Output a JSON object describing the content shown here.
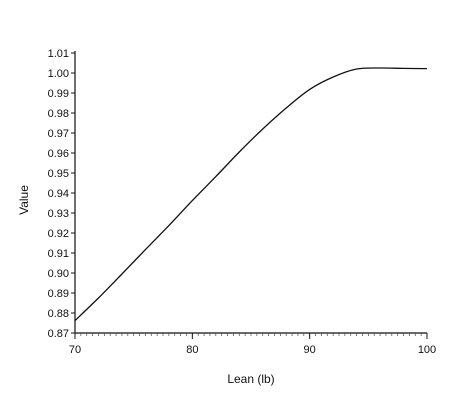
{
  "chart_data": {
    "type": "line",
    "xlabel": "Lean  (lb)",
    "ylabel": "Value",
    "xlim": [
      70,
      100
    ],
    "ylim": [
      0.87,
      1.01
    ],
    "x_ticks": [
      70,
      80,
      90,
      100
    ],
    "x_tick_labels": [
      "70",
      "80",
      "90",
      "100"
    ],
    "y_ticks": [
      0.87,
      0.88,
      0.89,
      0.9,
      0.91,
      0.92,
      0.93,
      0.94,
      0.95,
      0.96,
      0.97,
      0.98,
      0.99,
      1.0,
      1.01
    ],
    "y_tick_labels": [
      "0.87",
      "0.88",
      "0.89",
      "0.90",
      "0.91",
      "0.92",
      "0.93",
      "0.94",
      "0.95",
      "0.96",
      "0.97",
      "0.98",
      "0.99",
      "1.00",
      "1.01"
    ],
    "grid": false,
    "line_color": "#111111",
    "series": [
      {
        "x": [
          70,
          72,
          74,
          76,
          78,
          80,
          82,
          84,
          86,
          88,
          90,
          92,
          94,
          96,
          98,
          100
        ],
        "values": [
          0.8762,
          0.8875,
          0.8995,
          0.9117,
          0.9237,
          0.9362,
          0.9482,
          0.9605,
          0.972,
          0.9825,
          0.9918,
          0.998,
          1.002,
          1.0025,
          1.0023,
          1.0022
        ]
      }
    ]
  }
}
